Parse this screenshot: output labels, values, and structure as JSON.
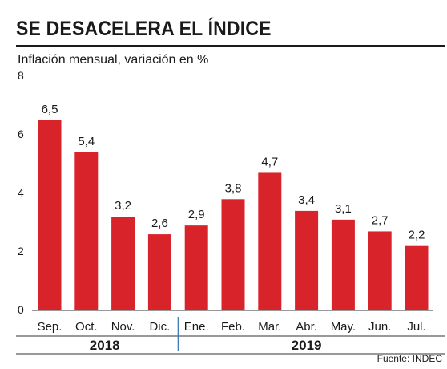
{
  "title": "SE DESACELERA EL ÍNDICE",
  "subtitle": "Inflación mensual, variación en %",
  "source": "Fuente: INDEC",
  "colors": {
    "bar": "#d9232a",
    "text": "#1a1a1a",
    "axis": "#333333",
    "year_divider": "#2f6fb3"
  },
  "chart_data": {
    "type": "bar",
    "categories": [
      "Sep.",
      "Oct.",
      "Nov.",
      "Dic.",
      "Ene.",
      "Feb.",
      "Mar.",
      "Abr.",
      "May.",
      "Jun.",
      "Jul."
    ],
    "values": [
      6.5,
      5.4,
      3.2,
      2.6,
      2.9,
      3.8,
      4.7,
      3.4,
      3.1,
      2.7,
      2.2
    ],
    "value_labels": [
      "6,5",
      "5,4",
      "3,2",
      "2,6",
      "2,9",
      "3,8",
      "4,7",
      "3,4",
      "3,1",
      "2,7",
      "2,2"
    ],
    "ylim": [
      0,
      8
    ],
    "yticks": [
      0,
      2,
      4,
      6,
      8
    ],
    "groups": [
      {
        "label": "2018",
        "categories": [
          "Sep.",
          "Oct.",
          "Nov.",
          "Dic."
        ]
      },
      {
        "label": "2019",
        "categories": [
          "Ene.",
          "Feb.",
          "Mar.",
          "Abr.",
          "May.",
          "Jun.",
          "Jul."
        ]
      }
    ],
    "grid": false,
    "legend": "none"
  }
}
